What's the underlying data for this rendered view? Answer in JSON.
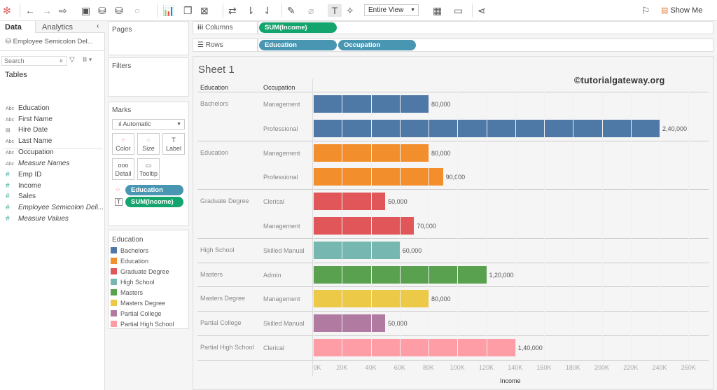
{
  "toolbar": {
    "view_select": "Entire View",
    "show_me": "Show Me"
  },
  "left": {
    "tab_data": "Data",
    "tab_analytics": "Analytics",
    "datasource": "Employee Semicolon Del...",
    "search_placeholder": "Search",
    "tables_heading": "Tables",
    "dimensions": [
      {
        "type": "Abc",
        "name": "Education"
      },
      {
        "type": "Abc",
        "name": "First Name"
      },
      {
        "type": "date",
        "name": "Hire Date"
      },
      {
        "type": "Abc",
        "name": "Last Name"
      },
      {
        "type": "Abc",
        "name": "Occupation"
      },
      {
        "type": "Abc",
        "name": "Measure Names"
      }
    ],
    "measures": [
      {
        "name": "Emp ID"
      },
      {
        "name": "Income"
      },
      {
        "name": "Sales"
      },
      {
        "name": "Employee Semicolon Deli..."
      },
      {
        "name": "Measure Values"
      }
    ]
  },
  "shelves": {
    "pages": "Pages",
    "filters": "Filters",
    "columns_label": "Columns",
    "rows_label": "Rows",
    "columns": [
      "SUM(Income)"
    ],
    "rows": [
      "Education",
      "Occupation"
    ]
  },
  "marks": {
    "title": "Marks",
    "type": "Automatic",
    "buttons": [
      "Color",
      "Size",
      "Label",
      "Detail",
      "Tooltip"
    ],
    "pills": [
      "Education",
      "SUM(Income)"
    ]
  },
  "legend": {
    "title": "Education",
    "items": [
      {
        "name": "Bachelors",
        "color": "#4e79a7"
      },
      {
        "name": "Education",
        "color": "#f28e2b"
      },
      {
        "name": "Graduate Degree",
        "color": "#e15759"
      },
      {
        "name": "High School",
        "color": "#76b7b2"
      },
      {
        "name": "Masters",
        "color": "#59a14f"
      },
      {
        "name": "Masters Degree",
        "color": "#edc948"
      },
      {
        "name": "Partial College",
        "color": "#b07aa1"
      },
      {
        "name": "Partial High School",
        "color": "#ff9da7"
      }
    ]
  },
  "sheet": {
    "title": "Sheet 1",
    "watermark": "©tutorialgateway.org",
    "col_header_1": "Education",
    "col_header_2": "Occupation"
  },
  "chart_data": {
    "type": "bar",
    "orientation": "horizontal",
    "xlabel": "Income",
    "xlim": [
      0,
      260000
    ],
    "xticks": [
      "0K",
      "20K",
      "40K",
      "60K",
      "80K",
      "100K",
      "120K",
      "140K",
      "160K",
      "180K",
      "200K",
      "220K",
      "240K",
      "260K"
    ],
    "rows": [
      {
        "education": "Bachelors",
        "occupation": "Management",
        "value": 80000,
        "label": "80,000"
      },
      {
        "education": "",
        "occupation": "Professional",
        "value": 240000,
        "label": "2,40,000"
      },
      {
        "education": "Education",
        "occupation": "Management",
        "value": 80000,
        "label": "80,000"
      },
      {
        "education": "",
        "occupation": "Professional",
        "value": 90000,
        "label": "90,000"
      },
      {
        "education": "Graduate Degree",
        "occupation": "Clerical",
        "value": 50000,
        "label": "50,000"
      },
      {
        "education": "",
        "occupation": "Management",
        "value": 70000,
        "label": "70,000"
      },
      {
        "education": "High School",
        "occupation": "Skilled Manual",
        "value": 60000,
        "label": "60,000"
      },
      {
        "education": "Masters",
        "occupation": "Admin",
        "value": 120000,
        "label": "1,20,000"
      },
      {
        "education": "Masters Degree",
        "occupation": "Management",
        "value": 80000,
        "label": "80,000"
      },
      {
        "education": "Partial College",
        "occupation": "Skilled Manual",
        "value": 50000,
        "label": "50,000"
      },
      {
        "education": "Partial High School",
        "occupation": "Clerical",
        "value": 140000,
        "label": "1,40,000"
      }
    ],
    "group_colors": {
      "Bachelors": "#4e79a7",
      "Education": "#f28e2b",
      "Graduate Degree": "#e15759",
      "High School": "#76b7b2",
      "Masters": "#59a14f",
      "Masters Degree": "#edc948",
      "Partial College": "#b07aa1",
      "Partial High School": "#ff9da7"
    }
  }
}
